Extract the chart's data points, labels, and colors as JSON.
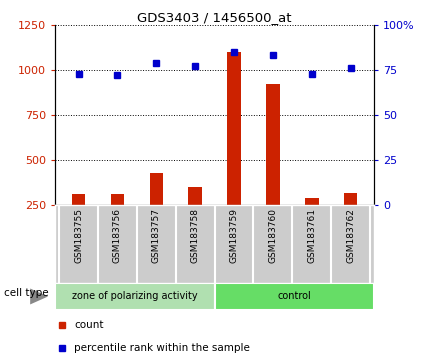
{
  "title": "GDS3403 / 1456500_at",
  "samples": [
    "GSM183755",
    "GSM183756",
    "GSM183757",
    "GSM183758",
    "GSM183759",
    "GSM183760",
    "GSM183761",
    "GSM183762"
  ],
  "counts": [
    310,
    310,
    430,
    350,
    1100,
    920,
    290,
    320
  ],
  "percentile_ranks": [
    73,
    72,
    79,
    77,
    85,
    83,
    73,
    76
  ],
  "group_labels": [
    "zone of polarizing activity",
    "control"
  ],
  "group_spans": [
    4,
    4
  ],
  "group_colors": [
    "#b0e0b0",
    "#66dd66"
  ],
  "bar_color": "#cc2200",
  "dot_color": "#0000cc",
  "left_ylim": [
    250,
    1250
  ],
  "left_yticks": [
    250,
    500,
    750,
    1000,
    1250
  ],
  "right_ylim": [
    0,
    100
  ],
  "right_yticks": [
    0,
    25,
    50,
    75,
    100
  ],
  "right_yticklabels": [
    "0",
    "25",
    "50",
    "75",
    "100%"
  ],
  "bar_width": 0.35,
  "cell_type_label": "cell type",
  "legend_count_label": "count",
  "legend_pct_label": "percentile rank within the sample",
  "label_area_color": "#cccccc"
}
